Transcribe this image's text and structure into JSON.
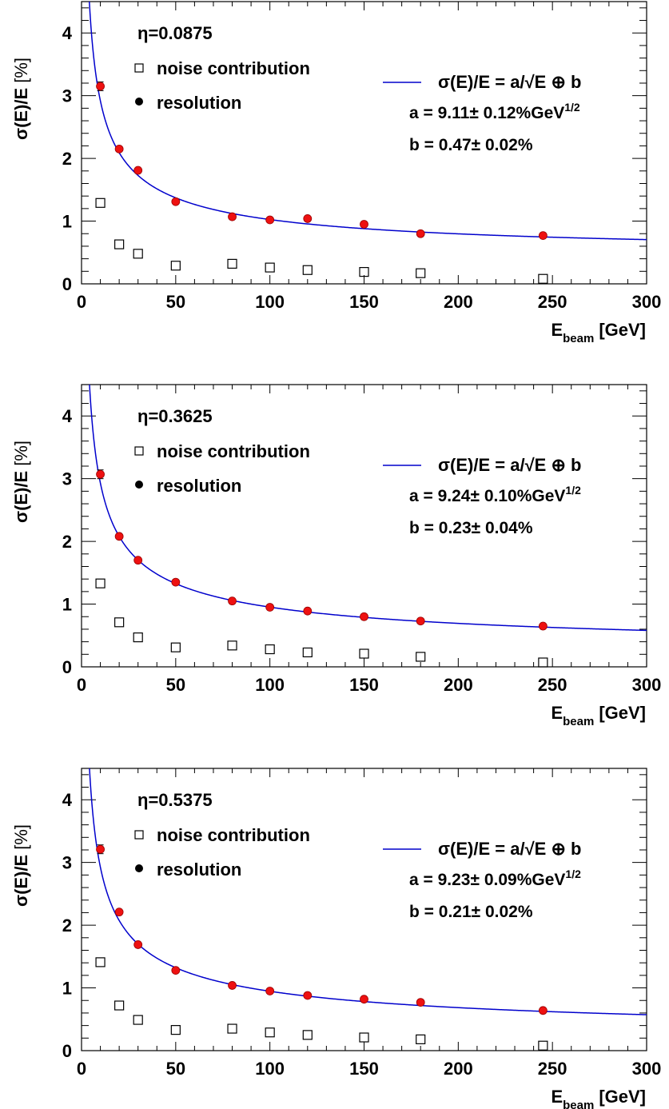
{
  "chart_data": [
    {
      "type": "scatter",
      "eta_label": "η=0.0875",
      "xlabel": "E",
      "xlabel_sub": "beam",
      "xlabel_unit": "[GeV]",
      "ylabel": "σ(E)/E",
      "ylabel_unit": "[%]",
      "xlim": [
        0,
        300
      ],
      "ylim": [
        0,
        4.5
      ],
      "xticks": [
        0,
        50,
        100,
        150,
        200,
        250,
        300
      ],
      "yticks": [
        0,
        1,
        2,
        3,
        4
      ],
      "legend": {
        "noise": "noise contribution",
        "resolution": "resolution",
        "fit": "σ(E)/E = a/√E ⊕ b",
        "a_line": "a =  9.11± 0.12%GeV",
        "a_sup": "1/2",
        "b_line": "b =  0.47± 0.02%"
      },
      "fit": {
        "a": 9.11,
        "b": 0.47
      },
      "series": [
        {
          "name": "resolution",
          "x": [
            10,
            20,
            30,
            50,
            80,
            100,
            120,
            150,
            180,
            245
          ],
          "y": [
            3.15,
            2.15,
            1.81,
            1.31,
            1.07,
            1.02,
            1.04,
            0.95,
            0.8,
            0.77
          ],
          "yerr": [
            0.07,
            0.02,
            0.02,
            0.01,
            0.01,
            0.01,
            0.01,
            0.01,
            0.01,
            0.01
          ]
        },
        {
          "name": "noise contribution",
          "x": [
            10,
            20,
            30,
            50,
            80,
            100,
            120,
            150,
            180,
            245
          ],
          "y": [
            1.29,
            0.63,
            0.48,
            0.29,
            0.32,
            0.26,
            0.22,
            0.19,
            0.17,
            0.08
          ]
        }
      ]
    },
    {
      "type": "scatter",
      "eta_label": "η=0.3625",
      "xlabel": "E",
      "xlabel_sub": "beam",
      "xlabel_unit": "[GeV]",
      "ylabel": "σ(E)/E",
      "ylabel_unit": "[%]",
      "xlim": [
        0,
        300
      ],
      "ylim": [
        0,
        4.5
      ],
      "xticks": [
        0,
        50,
        100,
        150,
        200,
        250,
        300
      ],
      "yticks": [
        0,
        1,
        2,
        3,
        4
      ],
      "legend": {
        "noise": "noise contribution",
        "resolution": "resolution",
        "fit": "σ(E)/E = a/√E ⊕ b",
        "a_line": "a =  9.24± 0.10%GeV",
        "a_sup": "1/2",
        "b_line": "b =  0.23± 0.04%"
      },
      "fit": {
        "a": 9.24,
        "b": 0.23
      },
      "series": [
        {
          "name": "resolution",
          "x": [
            10,
            20,
            30,
            50,
            80,
            100,
            120,
            150,
            180,
            245
          ],
          "y": [
            3.07,
            2.08,
            1.7,
            1.35,
            1.05,
            0.95,
            0.89,
            0.8,
            0.73,
            0.65
          ],
          "yerr": [
            0.07,
            0.02,
            0.02,
            0.01,
            0.01,
            0.01,
            0.01,
            0.01,
            0.01,
            0.01
          ]
        },
        {
          "name": "noise contribution",
          "x": [
            10,
            20,
            30,
            50,
            80,
            100,
            120,
            150,
            180,
            245
          ],
          "y": [
            1.33,
            0.71,
            0.47,
            0.31,
            0.34,
            0.28,
            0.23,
            0.21,
            0.16,
            0.07
          ]
        }
      ]
    },
    {
      "type": "scatter",
      "eta_label": "η=0.5375",
      "xlabel": "E",
      "xlabel_sub": "beam",
      "xlabel_unit": "[GeV]",
      "ylabel": "σ(E)/E",
      "ylabel_unit": "[%]",
      "xlim": [
        0,
        300
      ],
      "ylim": [
        0,
        4.5
      ],
      "xticks": [
        0,
        50,
        100,
        150,
        200,
        250,
        300
      ],
      "yticks": [
        0,
        1,
        2,
        3,
        4
      ],
      "legend": {
        "noise": "noise contribution",
        "resolution": "resolution",
        "fit": "σ(E)/E = a/√E ⊕ b",
        "a_line": "a =  9.23± 0.09%GeV",
        "a_sup": "1/2",
        "b_line": "b =  0.21± 0.02%"
      },
      "fit": {
        "a": 9.23,
        "b": 0.21
      },
      "series": [
        {
          "name": "resolution",
          "x": [
            10,
            20,
            30,
            50,
            80,
            100,
            120,
            150,
            180,
            245
          ],
          "y": [
            3.21,
            2.21,
            1.69,
            1.28,
            1.04,
            0.95,
            0.88,
            0.82,
            0.77,
            0.64
          ],
          "yerr": [
            0.07,
            0.02,
            0.02,
            0.01,
            0.01,
            0.01,
            0.01,
            0.01,
            0.01,
            0.01
          ]
        },
        {
          "name": "noise contribution",
          "x": [
            10,
            20,
            30,
            50,
            80,
            100,
            120,
            150,
            180,
            245
          ],
          "y": [
            1.41,
            0.72,
            0.49,
            0.33,
            0.35,
            0.29,
            0.25,
            0.21,
            0.18,
            0.08
          ]
        }
      ]
    }
  ],
  "colors": {
    "axis": "#000000",
    "fit_line": "#0000cc",
    "resolution_marker": "#ee1111",
    "resolution_marker_edge": "#990000",
    "noise_marker": "#000000",
    "background": "#ffffff"
  }
}
